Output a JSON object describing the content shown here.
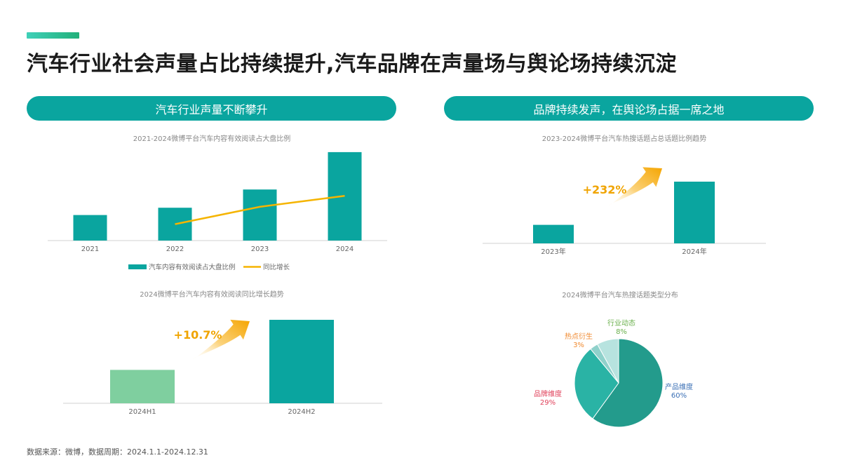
{
  "page": {
    "title": "汽车行业社会声量占比持续提升,汽车品牌在声量场与舆论场持续沉淀",
    "left_pill": "汽车行业声量不断攀升",
    "right_pill": "品牌持续发声，在舆论场占据一席之地",
    "source": "数据来源：微博，数据周期：2024.1.1-2024.12.31"
  },
  "colors": {
    "teal": "#0aa59f",
    "light_green": "#7fcf9f",
    "line_yellow": "#f5b400",
    "growth_text": "#f0a400",
    "pie_product": "#239b8c",
    "pie_brand": "#2ab3a5",
    "pie_hot": "#8fd1cb",
    "pie_industry": "#b7e3df"
  },
  "chart_data": [
    {
      "type": "bar",
      "title": "2021-2024微博平台汽车内容有效阅读占大盘比例",
      "categories": [
        "2021",
        "2022",
        "2023",
        "2024"
      ],
      "series": [
        {
          "name": "汽车内容有效阅读占大盘比例",
          "kind": "bar",
          "values": [
            28,
            36,
            56,
            97
          ]
        },
        {
          "name": "同比增长",
          "kind": "line",
          "values": [
            null,
            18,
            37,
            49
          ]
        }
      ],
      "ylim": [
        0,
        100
      ],
      "legend": "bottom"
    },
    {
      "type": "bar",
      "title": "2024微博平台汽车内容有效阅读同比增长趋势",
      "categories": [
        "2024H1",
        "2024H2"
      ],
      "values": [
        40,
        100
      ],
      "ylim": [
        0,
        100
      ],
      "annotation": "+10.7%"
    },
    {
      "type": "bar",
      "title": "2023-2024微博平台汽车热搜话题占总话题比例趋势",
      "categories": [
        "2023年",
        "2024年"
      ],
      "values": [
        30,
        100
      ],
      "ylim": [
        0,
        100
      ],
      "annotation": "+232%"
    },
    {
      "type": "pie",
      "title": "2024微博平台汽车热搜话题类型分布",
      "slices": [
        {
          "label": "产品维度",
          "value": 60,
          "text": "60%",
          "label_color": "#3a6fb5"
        },
        {
          "label": "品牌维度",
          "value": 29,
          "text": "29%",
          "label_color": "#e0405a"
        },
        {
          "label": "热点衍生",
          "value": 3,
          "text": "3%",
          "label_color": "#f08a30"
        },
        {
          "label": "行业动态",
          "value": 8,
          "text": "8%",
          "label_color": "#6ab04c"
        }
      ]
    }
  ]
}
